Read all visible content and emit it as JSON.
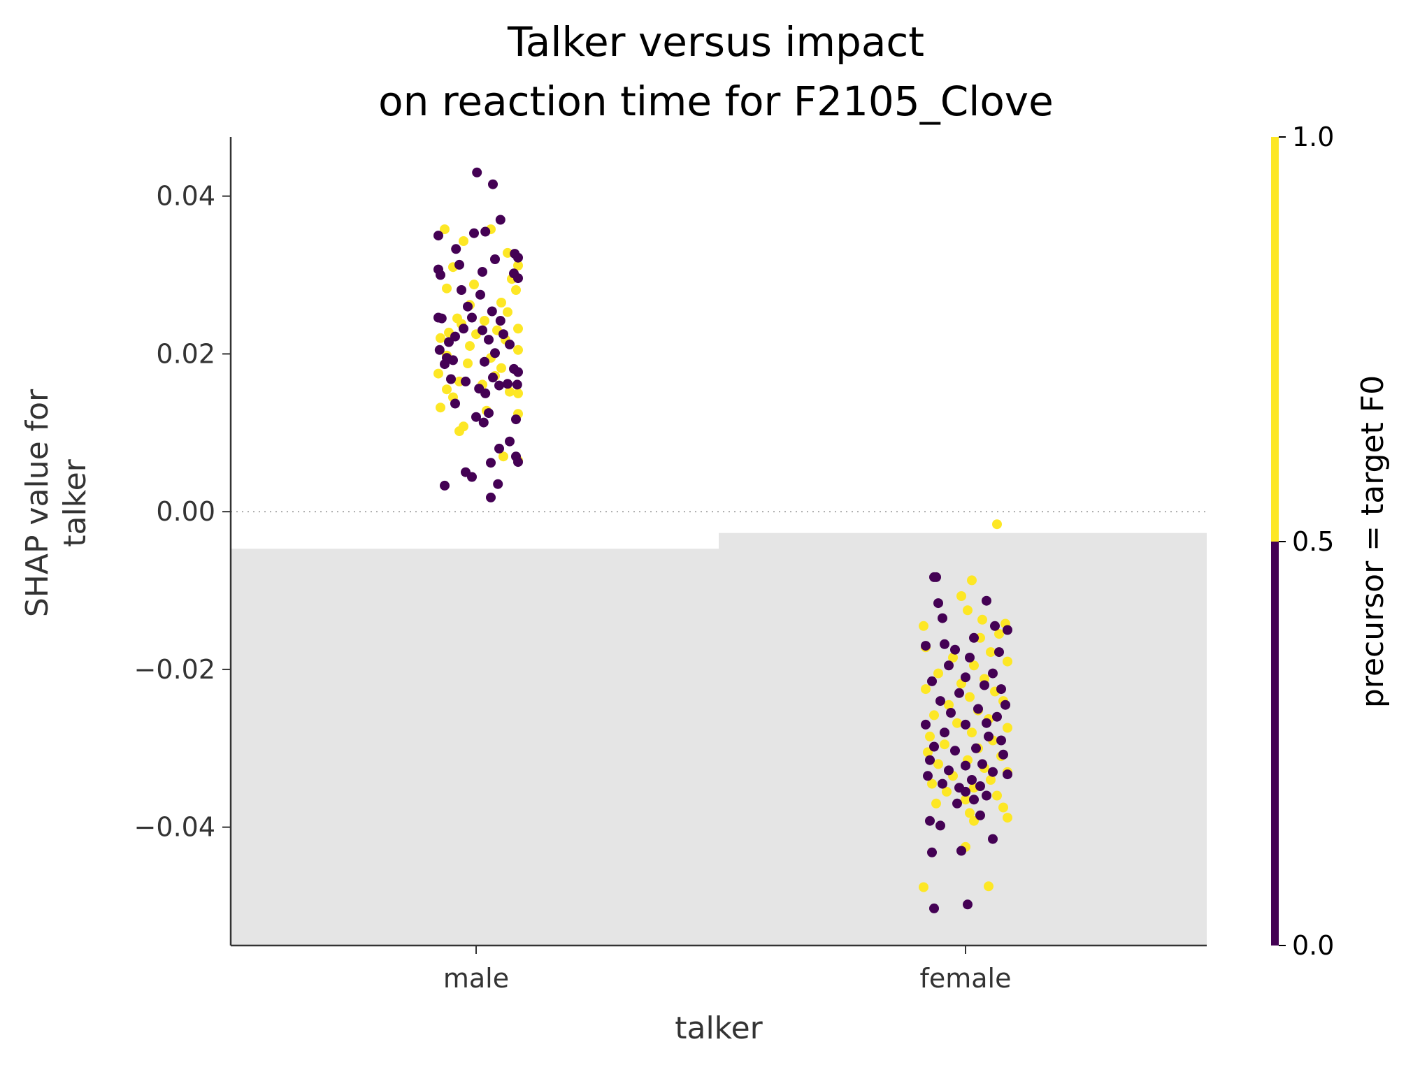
{
  "chart_data": {
    "type": "scatter",
    "title_line1": "Talker versus impact",
    "title_line2": "on reaction time for F2105_Clove",
    "xlabel": "talker",
    "ylabel_line1": "SHAP value for",
    "ylabel_line2": "talker",
    "categories": [
      "male",
      "female"
    ],
    "ylim": [
      -0.055,
      0.0475
    ],
    "yticks": [
      0.04,
      0.02,
      0.0,
      -0.02,
      -0.04
    ],
    "ytick_labels": [
      "0.04",
      "0.02",
      "0.00",
      "−0.02",
      "−0.04"
    ],
    "zero_line": "dotted",
    "background_bars": [
      {
        "category": "male",
        "value": -0.0047
      },
      {
        "category": "female",
        "value": -0.0027
      }
    ],
    "colorbar": {
      "label": "precursor = target F0",
      "ticks": [
        "0.0",
        "0.5",
        "1.0"
      ],
      "low_color": "#440154",
      "high_color": "#fde725"
    },
    "series": [
      {
        "category": "male",
        "points_purple": [
          [
            0.002,
            0.043
          ],
          [
            0.04,
            0.0415
          ],
          [
            0.058,
            0.037
          ],
          [
            -0.09,
            0.035
          ],
          [
            -0.005,
            0.0353
          ],
          [
            0.022,
            0.0355
          ],
          [
            -0.048,
            0.0333
          ],
          [
            0.092,
            0.0327
          ],
          [
            0.1,
            0.0322
          ],
          [
            0.045,
            0.032
          ],
          [
            -0.04,
            0.0313
          ],
          [
            -0.09,
            0.0307
          ],
          [
            0.015,
            0.0304
          ],
          [
            -0.085,
            0.03
          ],
          [
            0.09,
            0.0302
          ],
          [
            0.1,
            0.0296
          ],
          [
            -0.035,
            0.0281
          ],
          [
            0.01,
            0.0275
          ],
          [
            -0.02,
            0.026
          ],
          [
            0.038,
            0.0254
          ],
          [
            -0.09,
            0.0246
          ],
          [
            -0.082,
            0.0245
          ],
          [
            -0.01,
            0.0246
          ],
          [
            0.058,
            0.0242
          ],
          [
            -0.03,
            0.0232
          ],
          [
            0.015,
            0.023
          ],
          [
            0.065,
            0.0225
          ],
          [
            -0.05,
            0.0222
          ],
          [
            0.03,
            0.0218
          ],
          [
            -0.065,
            0.0215
          ],
          [
            0.08,
            0.0212
          ],
          [
            -0.087,
            0.0205
          ],
          [
            0.045,
            0.0201
          ],
          [
            -0.07,
            0.0195
          ],
          [
            -0.055,
            0.0192
          ],
          [
            0.02,
            0.019
          ],
          [
            -0.075,
            0.0187
          ],
          [
            0.09,
            0.0181
          ],
          [
            0.1,
            0.0177
          ],
          [
            0.04,
            0.017
          ],
          [
            -0.06,
            0.0168
          ],
          [
            -0.025,
            0.0165
          ],
          [
            0.075,
            0.0162
          ],
          [
            0.098,
            0.0161
          ],
          [
            0.055,
            0.016
          ],
          [
            0.007,
            0.0156
          ],
          [
            0.022,
            0.015
          ],
          [
            -0.05,
            0.0137
          ],
          [
            0.03,
            0.0125
          ],
          [
            0.095,
            0.0117
          ],
          [
            0.018,
            0.0113
          ],
          [
            0.0,
            0.012
          ],
          [
            0.08,
            0.0089
          ],
          [
            0.055,
            0.008
          ],
          [
            0.095,
            0.007
          ],
          [
            0.035,
            0.0062
          ],
          [
            -0.025,
            0.005
          ],
          [
            -0.01,
            0.0044
          ],
          [
            0.052,
            0.0035
          ],
          [
            -0.075,
            0.0033
          ],
          [
            0.035,
            0.0018
          ],
          [
            0.1,
            0.0063
          ]
        ],
        "points_yellow": [
          [
            -0.075,
            0.0358
          ],
          [
            0.035,
            0.0358
          ],
          [
            -0.03,
            0.0343
          ],
          [
            0.075,
            0.0328
          ],
          [
            -0.055,
            0.031
          ],
          [
            0.1,
            0.0312
          ],
          [
            0.085,
            0.0295
          ],
          [
            -0.005,
            0.0288
          ],
          [
            -0.07,
            0.0283
          ],
          [
            0.095,
            0.0281
          ],
          [
            0.06,
            0.0265
          ],
          [
            -0.015,
            0.0262
          ],
          [
            0.075,
            0.0253
          ],
          [
            -0.045,
            0.0245
          ],
          [
            0.02,
            0.0242
          ],
          [
            -0.035,
            0.0238
          ],
          [
            0.1,
            0.0232
          ],
          [
            0.05,
            0.023
          ],
          [
            -0.065,
            0.0227
          ],
          [
            0.0,
            0.0225
          ],
          [
            -0.085,
            0.022
          ],
          [
            0.07,
            0.0218
          ],
          [
            -0.015,
            0.021
          ],
          [
            0.1,
            0.0205
          ],
          [
            -0.07,
            0.0198
          ],
          [
            0.035,
            0.0195
          ],
          [
            -0.02,
            0.0188
          ],
          [
            0.06,
            0.0182
          ],
          [
            -0.09,
            0.0175
          ],
          [
            0.045,
            0.0172
          ],
          [
            -0.04,
            0.0165
          ],
          [
            0.015,
            0.0161
          ],
          [
            -0.07,
            0.0155
          ],
          [
            0.08,
            0.0152
          ],
          [
            0.1,
            0.015
          ],
          [
            -0.055,
            0.0145
          ],
          [
            -0.085,
            0.0132
          ],
          [
            0.025,
            0.0128
          ],
          [
            0.1,
            0.0124
          ],
          [
            -0.03,
            0.0108
          ],
          [
            -0.04,
            0.0102
          ],
          [
            0.065,
            0.007
          ],
          [
            0.1,
            0.0065
          ]
        ]
      },
      {
        "category": "female",
        "points_purple": [
          [
            -0.075,
            -0.0083
          ],
          [
            -0.07,
            -0.0083
          ],
          [
            0.05,
            -0.0113
          ],
          [
            -0.065,
            -0.0116
          ],
          [
            -0.055,
            -0.0135
          ],
          [
            0.07,
            -0.0145
          ],
          [
            0.1,
            -0.015
          ],
          [
            0.02,
            -0.016
          ],
          [
            -0.05,
            -0.0168
          ],
          [
            -0.095,
            -0.017
          ],
          [
            -0.025,
            -0.0175
          ],
          [
            0.08,
            -0.0178
          ],
          [
            0.01,
            -0.0185
          ],
          [
            -0.04,
            -0.0195
          ],
          [
            0.065,
            -0.0205
          ],
          [
            0.0,
            -0.021
          ],
          [
            -0.08,
            -0.0215
          ],
          [
            0.045,
            -0.022
          ],
          [
            0.085,
            -0.0225
          ],
          [
            -0.015,
            -0.023
          ],
          [
            -0.06,
            -0.024
          ],
          [
            0.095,
            -0.0245
          ],
          [
            0.03,
            -0.025
          ],
          [
            -0.035,
            -0.0255
          ],
          [
            0.075,
            -0.026
          ],
          [
            -0.095,
            -0.027
          ],
          [
            0.05,
            -0.0268
          ],
          [
            0.0,
            -0.027
          ],
          [
            -0.05,
            -0.028
          ],
          [
            0.055,
            -0.0285
          ],
          [
            0.085,
            -0.029
          ],
          [
            -0.075,
            -0.0298
          ],
          [
            0.025,
            -0.03
          ],
          [
            -0.025,
            -0.0303
          ],
          [
            0.09,
            -0.0308
          ],
          [
            -0.085,
            -0.0315
          ],
          [
            0.04,
            -0.032
          ],
          [
            0.0,
            -0.0322
          ],
          [
            -0.04,
            -0.0328
          ],
          [
            0.065,
            -0.033
          ],
          [
            0.1,
            -0.0333
          ],
          [
            -0.09,
            -0.0335
          ],
          [
            0.015,
            -0.034
          ],
          [
            -0.055,
            -0.0345
          ],
          [
            0.035,
            -0.0348
          ],
          [
            -0.015,
            -0.035
          ],
          [
            0.0,
            -0.0355
          ],
          [
            0.05,
            -0.036
          ],
          [
            0.02,
            -0.0365
          ],
          [
            -0.02,
            -0.037
          ],
          [
            0.035,
            -0.0385
          ],
          [
            -0.085,
            -0.0392
          ],
          [
            -0.06,
            -0.0398
          ],
          [
            0.065,
            -0.0415
          ],
          [
            -0.08,
            -0.0432
          ],
          [
            -0.01,
            -0.043
          ],
          [
            0.005,
            -0.0498
          ],
          [
            -0.075,
            -0.0503
          ]
        ],
        "points_yellow": [
          [
            0.075,
            -0.0016
          ],
          [
            0.015,
            -0.0087
          ],
          [
            -0.01,
            -0.0107
          ],
          [
            0.005,
            -0.0125
          ],
          [
            0.04,
            -0.0137
          ],
          [
            0.095,
            -0.0142
          ],
          [
            -0.1,
            -0.0145
          ],
          [
            0.08,
            -0.0155
          ],
          [
            0.035,
            -0.016
          ],
          [
            -0.095,
            -0.0172
          ],
          [
            0.06,
            -0.0178
          ],
          [
            -0.03,
            -0.0185
          ],
          [
            0.1,
            -0.019
          ],
          [
            0.02,
            -0.0195
          ],
          [
            -0.065,
            -0.0205
          ],
          [
            0.045,
            -0.0212
          ],
          [
            -0.01,
            -0.0218
          ],
          [
            -0.095,
            -0.0225
          ],
          [
            0.07,
            -0.0228
          ],
          [
            0.01,
            -0.0235
          ],
          [
            0.09,
            -0.024
          ],
          [
            -0.04,
            -0.0245
          ],
          [
            0.03,
            -0.0252
          ],
          [
            -0.075,
            -0.0258
          ],
          [
            0.055,
            -0.0263
          ],
          [
            -0.02,
            -0.0268
          ],
          [
            0.1,
            -0.0274
          ],
          [
            0.015,
            -0.028
          ],
          [
            -0.085,
            -0.0285
          ],
          [
            0.065,
            -0.029
          ],
          [
            -0.05,
            -0.0295
          ],
          [
            0.03,
            -0.03
          ],
          [
            -0.09,
            -0.0305
          ],
          [
            0.085,
            -0.031
          ],
          [
            0.005,
            -0.0315
          ],
          [
            -0.065,
            -0.032
          ],
          [
            0.045,
            -0.0325
          ],
          [
            0.1,
            -0.033
          ],
          [
            -0.03,
            -0.0335
          ],
          [
            0.06,
            -0.034
          ],
          [
            -0.08,
            -0.0345
          ],
          [
            0.02,
            -0.035
          ],
          [
            -0.045,
            -0.0355
          ],
          [
            0.075,
            -0.036
          ],
          [
            0.0,
            -0.0365
          ],
          [
            -0.07,
            -0.037
          ],
          [
            0.09,
            -0.0375
          ],
          [
            0.01,
            -0.0382
          ],
          [
            0.1,
            -0.0388
          ],
          [
            0.02,
            -0.0392
          ],
          [
            0.0,
            -0.0425
          ],
          [
            0.055,
            -0.0475
          ],
          [
            -0.1,
            -0.0476
          ]
        ]
      }
    ]
  }
}
